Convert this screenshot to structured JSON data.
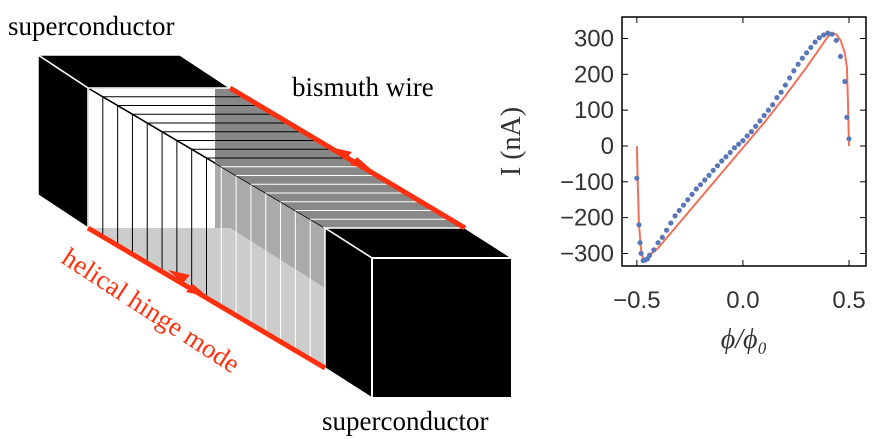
{
  "diagram": {
    "labels": [
      "superconductor",
      "bismuth wire",
      "helical hinge mode",
      "superconductor"
    ]
  },
  "chart_data": {
    "type": "scatter",
    "x_label": "ϕ/ϕ₀",
    "y_label": "I (nA)",
    "xlim": [
      -0.57,
      0.58
    ],
    "ylim": [
      -335,
      360
    ],
    "xticks": [
      {
        "value": -0.5,
        "label": "−0.5"
      },
      {
        "value": 0,
        "label": "0.0"
      },
      0.5
    ],
    "yticks": [
      300,
      200,
      100,
      0,
      {
        "value": -100,
        "label": "−100"
      },
      {
        "value": -200,
        "label": "−200"
      },
      {
        "value": -300,
        "label": "−300"
      }
    ],
    "series": [
      {
        "type": "line",
        "color": "#f0705a",
        "x": [
          -0.5,
          -0.495,
          -0.49,
          -0.48,
          -0.47,
          -0.46,
          -0.45,
          -0.43,
          -0.4,
          -0.3,
          -0.2,
          -0.1,
          0,
          0.1,
          0.2,
          0.3,
          0.35,
          0.4,
          0.42,
          0.44,
          0.46,
          0.48,
          0.49,
          0.495,
          0.5
        ],
        "values": [
          0,
          -120,
          -220,
          -290,
          -318,
          -320,
          -318,
          -300,
          -285,
          -215,
          -145,
          -75,
          -5,
          65,
          140,
          220,
          262,
          305,
          315,
          312,
          295,
          260,
          220,
          120,
          0
        ]
      },
      {
        "type": "scatter",
        "color": "#5a78b8",
        "x": [
          -0.5,
          -0.49,
          -0.485,
          -0.48,
          -0.47,
          -0.46,
          -0.45,
          -0.44,
          -0.42,
          -0.4,
          -0.38,
          -0.36,
          -0.34,
          -0.32,
          -0.3,
          -0.28,
          -0.26,
          -0.24,
          -0.22,
          -0.2,
          -0.18,
          -0.16,
          -0.14,
          -0.12,
          -0.1,
          -0.08,
          -0.06,
          -0.04,
          -0.02,
          0,
          0.02,
          0.04,
          0.06,
          0.08,
          0.1,
          0.12,
          0.14,
          0.16,
          0.18,
          0.2,
          0.22,
          0.24,
          0.26,
          0.28,
          0.3,
          0.32,
          0.34,
          0.36,
          0.38,
          0.4,
          0.42,
          0.44,
          0.46,
          0.48,
          0.49,
          0.5
        ],
        "values": [
          -90,
          -220,
          -270,
          -300,
          -320,
          -318,
          -315,
          -305,
          -290,
          -270,
          -255,
          -235,
          -215,
          -195,
          -180,
          -165,
          -150,
          -135,
          -120,
          -108,
          -95,
          -82,
          -68,
          -55,
          -42,
          -30,
          -18,
          -5,
          5,
          15,
          28,
          40,
          55,
          70,
          85,
          100,
          115,
          135,
          150,
          170,
          190,
          210,
          228,
          245,
          260,
          275,
          290,
          302,
          310,
          315,
          312,
          295,
          250,
          180,
          80,
          20
        ]
      }
    ]
  }
}
